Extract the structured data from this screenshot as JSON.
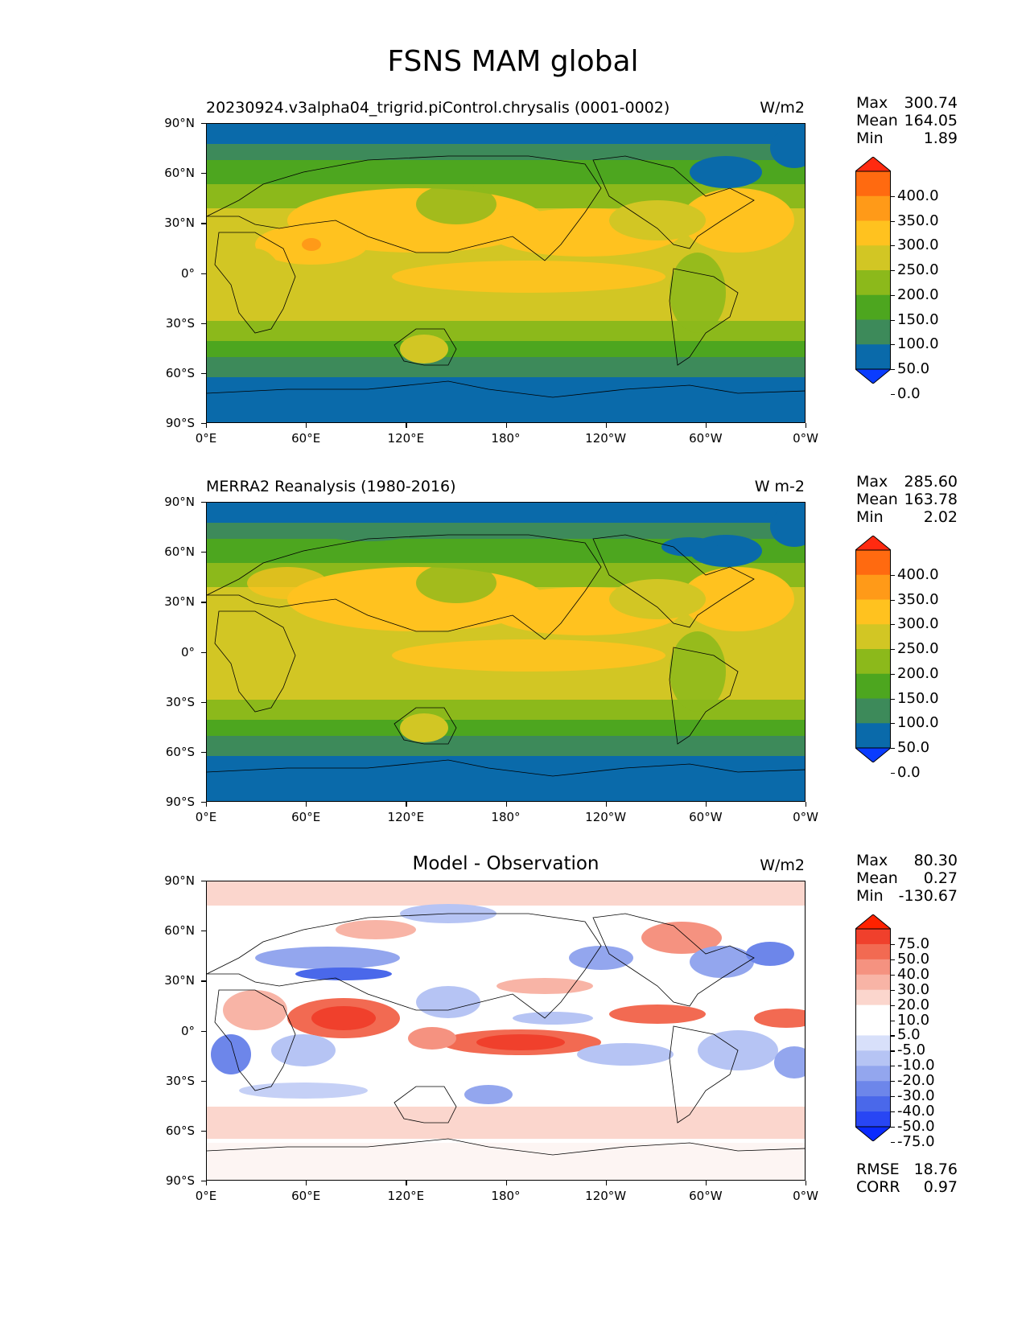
{
  "figure": {
    "title": "FSNS MAM global"
  },
  "axes": {
    "lat_ticks": [
      "90°N",
      "60°N",
      "30°N",
      "0°",
      "30°S",
      "60°S",
      "90°S"
    ],
    "lon_ticks": [
      "0°E",
      "60°E",
      "120°E",
      "180°",
      "120°W",
      "60°W",
      "0°W"
    ]
  },
  "panels": [
    {
      "title": "20230924.v3alpha04_trigrid.piControl.chrysalis (0001-0002)",
      "units": "W/m2",
      "stats": {
        "max_label": "Max",
        "max": "300.74",
        "mean_label": "Mean",
        "mean": "164.05",
        "min_label": "Min",
        "min": "1.89"
      },
      "colorbar_labels": [
        "400.0",
        "350.0",
        "300.0",
        "250.0",
        "200.0",
        "150.0",
        "100.0",
        "50.0",
        "0.0"
      ]
    },
    {
      "title": "MERRA2 Reanalysis (1980-2016)",
      "units": "W m-2",
      "stats": {
        "max_label": "Max",
        "max": "285.60",
        "mean_label": "Mean",
        "mean": "163.78",
        "min_label": "Min",
        "min": "2.02"
      },
      "colorbar_labels": [
        "400.0",
        "350.0",
        "300.0",
        "250.0",
        "200.0",
        "150.0",
        "100.0",
        "50.0",
        "0.0"
      ]
    },
    {
      "title": "Model - Observation",
      "units": "W/m2",
      "stats": {
        "max_label": "Max",
        "max": "80.30",
        "mean_label": "Mean",
        "mean": "0.27",
        "min_label": "Min",
        "min": "-130.67"
      },
      "colorbar_labels": [
        "75.0",
        "50.0",
        "40.0",
        "30.0",
        "20.0",
        "10.0",
        "5.0",
        "-5.0",
        "-10.0",
        "-20.0",
        "-30.0",
        "-40.0",
        "-50.0",
        "-75.0"
      ],
      "rmse_label": "RMSE",
      "rmse": "18.76",
      "corr_label": "CORR",
      "corr": "0.97"
    }
  ],
  "colors": {
    "abs_scale": [
      "#ff2a10",
      "#ff6a10",
      "#ff9a18",
      "#ffc21f",
      "#d2c624",
      "#8cb91b",
      "#4da61f",
      "#3d8a5a",
      "#0a6aaa",
      "#0a3cff"
    ],
    "diff_scale": [
      "#ff2200",
      "#f0402c",
      "#f26a52",
      "#f59280",
      "#f8b4a6",
      "#fbd6cd",
      "#ffffff",
      "#ffffff",
      "#d8e0fa",
      "#b6c4f4",
      "#93a6ee",
      "#6d86ea",
      "#4a68ea",
      "#2846f4",
      "#0a2aff"
    ]
  }
}
